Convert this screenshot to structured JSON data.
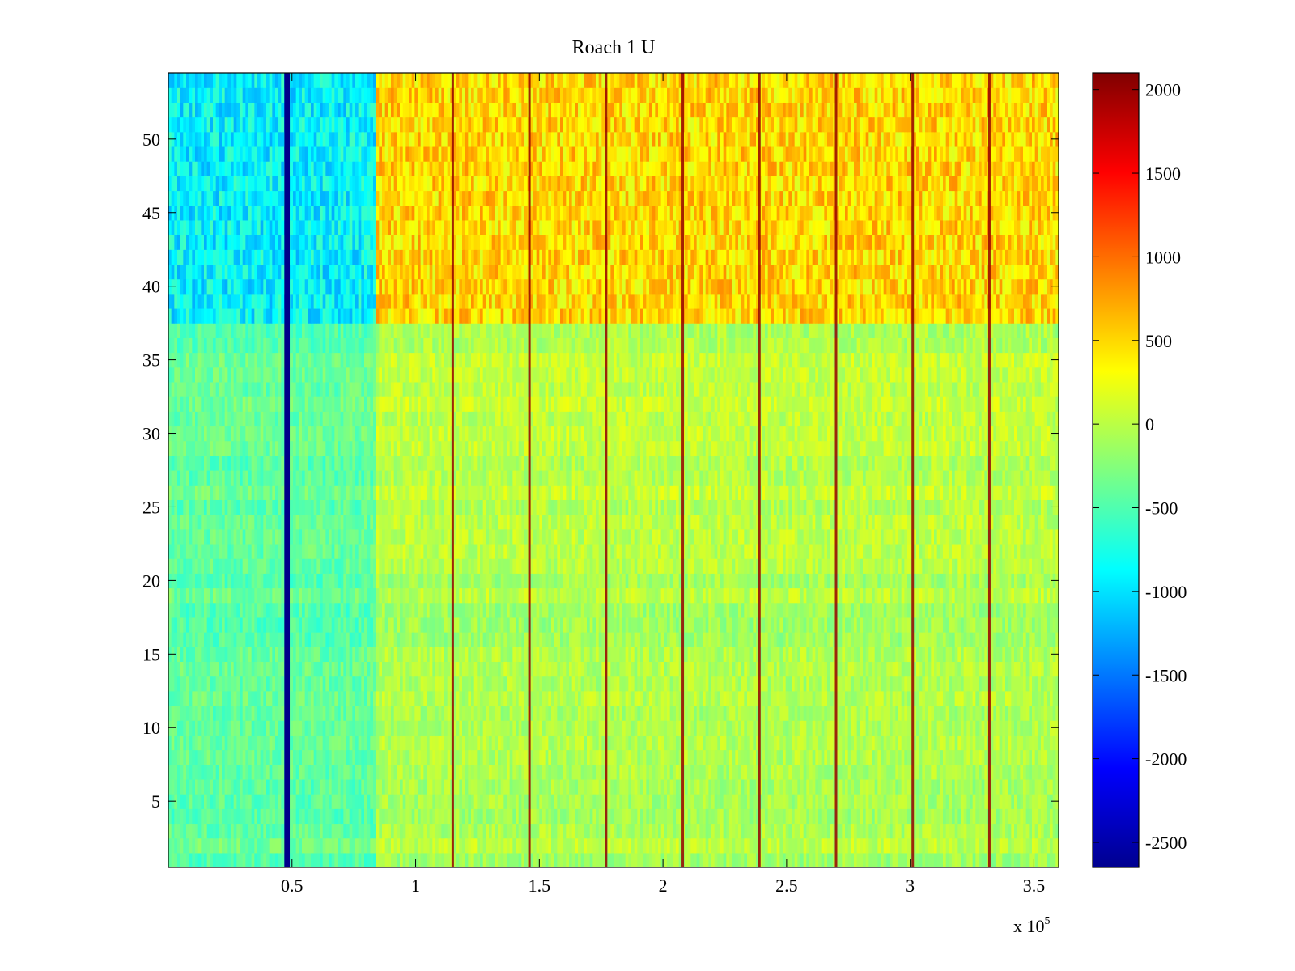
{
  "chart_data": {
    "type": "heatmap",
    "title": "Roach 1 U",
    "xlabel": "",
    "ylabel": "",
    "x_multiplier_label": {
      "base": "x 10",
      "exponent": "5"
    },
    "xlim": [
      0,
      3.6
    ],
    "ylim": [
      0.5,
      54.5
    ],
    "x_ticks": [
      0.5,
      1,
      1.5,
      2,
      2.5,
      3,
      3.5
    ],
    "x_tick_labels": [
      "0.5",
      "1",
      "1.5",
      "2",
      "2.5",
      "3",
      "3.5"
    ],
    "y_ticks": [
      5,
      10,
      15,
      20,
      25,
      30,
      35,
      40,
      45,
      50
    ],
    "y_tick_labels": [
      "5",
      "10",
      "15",
      "20",
      "25",
      "30",
      "35",
      "40",
      "45",
      "50"
    ],
    "colorbar": {
      "clim": [
        -2650,
        2100
      ],
      "ticks": [
        2000,
        1500,
        1000,
        500,
        0,
        -500,
        -1000,
        -1500,
        -2000,
        -2500
      ],
      "tick_labels": [
        "2000",
        "1500",
        "1000",
        "500",
        "0",
        "-500",
        "-1000",
        "-1500",
        "-2000",
        "-2500"
      ],
      "colormap": "jet"
    },
    "data_extent": {
      "x": [
        0,
        3.6
      ],
      "rows": [
        1,
        54
      ]
    },
    "features": {
      "strong_low_band": {
        "x": 0.48,
        "width": 0.022,
        "value": -2600
      },
      "spike_columns_x": [
        1.15,
        1.46,
        1.77,
        2.08,
        2.39,
        2.7,
        3.01,
        3.32
      ],
      "spike_value": 2000,
      "cool_region": {
        "x_start": 0.0,
        "x_end": 0.84,
        "row_start": 38,
        "row_end": 54,
        "value": -900
      },
      "warm_region": {
        "x_start": 0.84,
        "x_end": 3.6,
        "row_start": 38,
        "row_end": 54,
        "value": 500
      },
      "baseline_value": -150
    }
  }
}
